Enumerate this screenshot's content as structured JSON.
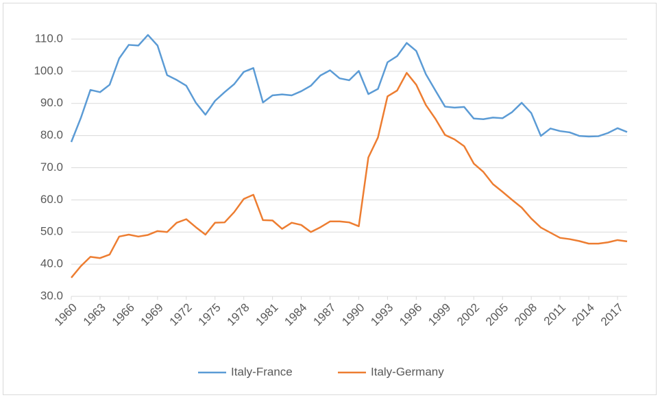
{
  "chart_data": {
    "type": "line",
    "x": [
      1960,
      1961,
      1962,
      1963,
      1964,
      1965,
      1966,
      1967,
      1968,
      1969,
      1970,
      1971,
      1972,
      1973,
      1974,
      1975,
      1976,
      1977,
      1978,
      1979,
      1980,
      1981,
      1982,
      1983,
      1984,
      1985,
      1986,
      1987,
      1988,
      1989,
      1990,
      1991,
      1992,
      1993,
      1994,
      1995,
      1996,
      1997,
      1998,
      1999,
      2000,
      2001,
      2002,
      2003,
      2004,
      2005,
      2006,
      2007,
      2008,
      2009,
      2010,
      2011,
      2012,
      2013,
      2014,
      2015,
      2016,
      2017,
      2018
    ],
    "series": [
      {
        "name": "Italy-France",
        "color": "#5b9bd5",
        "values": [
          78.0,
          85.5,
          94.2,
          93.5,
          95.8,
          104.0,
          108.2,
          108.0,
          111.3,
          108.0,
          98.8,
          97.3,
          95.5,
          90.2,
          86.5,
          90.8,
          93.5,
          96.0,
          99.8,
          101.0,
          90.3,
          92.5,
          92.8,
          92.5,
          93.8,
          95.5,
          98.7,
          100.3,
          97.8,
          97.2,
          100.1,
          92.9,
          94.5,
          102.8,
          104.7,
          108.8,
          106.3,
          99.1,
          94.0,
          89.0,
          88.7,
          88.9,
          85.3,
          85.1,
          85.6,
          85.4,
          87.3,
          90.2,
          87.0,
          79.9,
          82.2,
          81.4,
          81.0,
          79.9,
          79.7,
          79.8,
          80.8,
          82.3,
          81.1
        ]
      },
      {
        "name": "Italy-Germany",
        "color": "#ed7d31",
        "values": [
          35.8,
          39.4,
          42.3,
          41.9,
          43.0,
          48.6,
          49.2,
          48.6,
          49.1,
          50.3,
          50.0,
          52.9,
          54.0,
          51.5,
          49.2,
          52.9,
          53.0,
          56.2,
          60.3,
          61.6,
          53.7,
          53.6,
          51.0,
          52.9,
          52.2,
          50.0,
          51.5,
          53.3,
          53.3,
          53.0,
          51.8,
          73.2,
          79.4,
          92.2,
          94.0,
          99.5,
          95.8,
          89.5,
          85.2,
          80.2,
          78.8,
          76.7,
          71.3,
          68.7,
          64.9,
          62.5,
          60.0,
          57.6,
          54.2,
          51.4,
          49.8,
          48.2,
          47.8,
          47.2,
          46.4,
          46.4,
          46.8,
          47.5,
          47.1
        ]
      }
    ],
    "xlim": [
      1960,
      2018
    ],
    "xticks": [
      1960,
      1963,
      1966,
      1969,
      1972,
      1975,
      1978,
      1981,
      1984,
      1987,
      1990,
      1993,
      1996,
      1999,
      2002,
      2005,
      2008,
      2011,
      2014,
      2017
    ],
    "ylim": [
      30,
      110
    ],
    "yticks": [
      {
        "value": 30,
        "label": "30.0"
      },
      {
        "value": 40,
        "label": "40.0"
      },
      {
        "value": 50,
        "label": "50.0"
      },
      {
        "value": 60,
        "label": "60.0"
      },
      {
        "value": 70,
        "label": "70.0"
      },
      {
        "value": 80,
        "label": "80.0"
      },
      {
        "value": 90,
        "label": "90.0"
      },
      {
        "value": 100,
        "label": "100.0"
      },
      {
        "value": 110,
        "label": "110.0"
      }
    ],
    "grid": true,
    "legend": "bottom"
  }
}
